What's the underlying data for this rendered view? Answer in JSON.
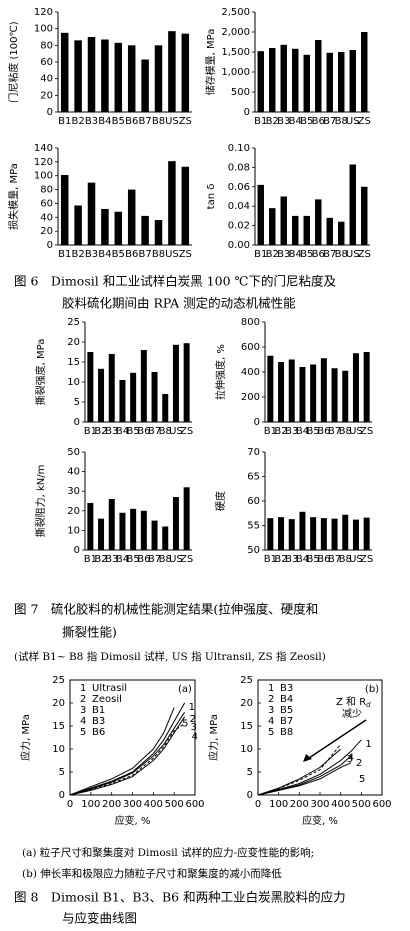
{
  "chart_data": [
    {
      "type": "bar",
      "ylabel": "门尼粘度 (100℃)",
      "categories": [
        "B1",
        "B2",
        "B3",
        "B4",
        "B5",
        "B6",
        "B7",
        "B8",
        "US",
        "ZS"
      ],
      "values": [
        95,
        86,
        90,
        87,
        83,
        80,
        63,
        80,
        97,
        94
      ],
      "color": "#000000",
      "ylim": [
        0,
        120
      ],
      "yticks": [
        0,
        20,
        40,
        60,
        80,
        100,
        120
      ]
    },
    {
      "type": "bar",
      "ylabel": "储存模量, MPa",
      "categories": [
        "B1",
        "B2",
        "B3",
        "B4",
        "B5",
        "B6",
        "B7",
        "B8",
        "US",
        "ZS"
      ],
      "values": [
        1520,
        1600,
        1680,
        1580,
        1430,
        1800,
        1480,
        1500,
        1550,
        2000
      ],
      "color": "#000000",
      "ylim": [
        0,
        2500
      ],
      "yticks": [
        0,
        500,
        {
          "value": 1000,
          "label": "1,000"
        },
        {
          "value": 1500,
          "label": "1,500"
        },
        {
          "value": 2000,
          "label": "2,000"
        },
        {
          "value": 2500,
          "label": "2,500"
        }
      ]
    },
    {
      "type": "bar",
      "ylabel": "损失模量, MPa",
      "categories": [
        "B1",
        "B2",
        "B3",
        "B4",
        "B5",
        "B6",
        "B7",
        "B8",
        "US",
        "ZS"
      ],
      "values": [
        101,
        57,
        90,
        52,
        48,
        80,
        42,
        36,
        121,
        113
      ],
      "color": "#000000",
      "ylim": [
        0,
        140
      ],
      "yticks": [
        0,
        20,
        40,
        60,
        80,
        100,
        120,
        140
      ]
    },
    {
      "type": "bar",
      "ylabel": "tan δ",
      "categories": [
        "B1",
        "B2",
        "B3",
        "B4",
        "B5",
        "B6",
        "B7",
        "B8",
        "US",
        "ZS"
      ],
      "values": [
        0.062,
        0.038,
        0.05,
        0.03,
        0.03,
        0.047,
        0.028,
        0.024,
        0.083,
        0.06
      ],
      "color": "#000000",
      "ylim": [
        0,
        0.1
      ],
      "yticks": [
        {
          "value": 0,
          "label": "0.00"
        },
        0.02,
        0.04,
        0.06,
        0.08,
        {
          "value": 0.1,
          "label": "0.10"
        }
      ]
    },
    {
      "type": "bar",
      "ylabel": "撕裂强度, MPa",
      "categories": [
        "B1",
        "B2",
        "B3",
        "B4",
        "B5",
        "B6",
        "B7",
        "B8",
        "US",
        "ZS"
      ],
      "values": [
        17.5,
        13.3,
        17,
        10.5,
        12.3,
        18,
        12.5,
        7,
        19.3,
        19.7
      ],
      "color": "#000000",
      "ylim": [
        0,
        25
      ],
      "yticks": [
        0,
        5,
        10,
        15,
        20,
        25
      ]
    },
    {
      "type": "bar",
      "ylabel": "拉伸强度, %",
      "categories": [
        "B1",
        "B2",
        "B3",
        "B4",
        "B5",
        "B6",
        "B7",
        "B8",
        "US",
        "ZS"
      ],
      "values": [
        530,
        480,
        500,
        440,
        460,
        510,
        430,
        410,
        550,
        560
      ],
      "color": "#000000",
      "ylim": [
        0,
        800
      ],
      "yticks": [
        0,
        200,
        400,
        600,
        800
      ]
    },
    {
      "type": "bar",
      "ylabel": "撕裂阻力, kN/m",
      "categories": [
        "B1",
        "B2",
        "B3",
        "B4",
        "B5",
        "B6",
        "B7",
        "B8",
        "US",
        "ZS"
      ],
      "values": [
        24,
        16,
        26,
        19,
        21,
        20,
        15,
        12,
        27,
        32
      ],
      "color": "#000000",
      "ylim": [
        0,
        50
      ],
      "yticks": [
        0,
        10,
        20,
        30,
        40,
        50
      ]
    },
    {
      "type": "bar",
      "ylabel": "硬度",
      "categories": [
        "B1",
        "B2",
        "B3",
        "B4",
        "B5",
        "B6",
        "B7",
        "B8",
        "US",
        "ZS"
      ],
      "values": [
        56.5,
        56.7,
        56.3,
        57.8,
        56.7,
        56.5,
        56.4,
        57.2,
        56.2,
        56.6
      ],
      "color": "#000000",
      "ylim": [
        50,
        70
      ],
      "yticks": [
        50,
        55,
        60,
        65,
        70
      ]
    },
    {
      "type": "line",
      "panel_label": "(a)",
      "xlabel": "应变, %",
      "ylabel": "应力, MPa",
      "x": [
        0,
        100,
        200,
        300,
        400,
        450,
        500,
        550
      ],
      "xlim": [
        0,
        600
      ],
      "xticks": [
        0,
        100,
        200,
        300,
        400,
        500,
        600
      ],
      "ylim": [
        0,
        25
      ],
      "yticks": [
        0,
        5,
        10,
        15,
        20,
        25
      ],
      "series": [
        {
          "label": "1",
          "name": "Ultrasil",
          "color": "#000000",
          "values": [
            0,
            1.5,
            3,
            5,
            9,
            12,
            16,
            20
          ]
        },
        {
          "label": "2",
          "name": "Zeosil",
          "color": "#000000",
          "values": [
            0,
            1.3,
            2.8,
            4.8,
            8.5,
            11,
            14.5,
            18
          ]
        },
        {
          "label": "3",
          "name": "B1",
          "color": "#000000",
          "values": [
            0,
            1,
            2.3,
            4,
            7.5,
            10,
            13.5,
            17
          ]
        },
        {
          "label": "4",
          "name": "B3",
          "color": "#000000",
          "values": [
            0,
            1.2,
            2.5,
            4.3,
            8,
            10.5,
            14,
            15.5
          ]
        },
        {
          "label": "5",
          "name": "B6",
          "color": "#000000",
          "values": [
            0,
            1.8,
            3.5,
            5.8,
            10,
            13.5,
            19,
            null
          ]
        }
      ]
    },
    {
      "type": "line",
      "panel_label": "(b)",
      "xlabel": "应变, %",
      "ylabel": "应力, MPa",
      "x": [
        0,
        100,
        200,
        300,
        400,
        450,
        500,
        550
      ],
      "xlim": [
        0,
        600
      ],
      "xticks": [
        0,
        100,
        200,
        300,
        400,
        500,
        600
      ],
      "ylim": [
        0,
        25
      ],
      "yticks": [
        0,
        5,
        10,
        15,
        20,
        25
      ],
      "annotation": {
        "text": "Z 和 R",
        "sub": "d",
        "text2": "减少"
      },
      "series": [
        {
          "label": "1",
          "name": "B3",
          "color": "#000000",
          "values": [
            0,
            1.2,
            2.5,
            4.5,
            7.5,
            9.5,
            12,
            null
          ]
        },
        {
          "label": "2",
          "name": "B4",
          "color": "#000000",
          "values": [
            0,
            1,
            2.2,
            4,
            6.5,
            8.5,
            null,
            null
          ]
        },
        {
          "label": "3",
          "name": "B5",
          "color": "#000000",
          "values": [
            0,
            1.5,
            3.5,
            6,
            10,
            null,
            null,
            null
          ]
        },
        {
          "label": "4",
          "name": "B7",
          "color": "#000000",
          "values": [
            0,
            1.4,
            3.2,
            5.5,
            11,
            null,
            null,
            null
          ]
        },
        {
          "label": "5",
          "name": "B8",
          "color": "#000000",
          "values": [
            0,
            1,
            2,
            3.5,
            6,
            7,
            null,
            null
          ]
        }
      ]
    }
  ],
  "captions": {
    "fig6": [
      "图 6　Dimosil 和工业试样白炭黑 100 ℃下的门尼粘度及",
      "胶料硫化期间由 RPA 测定的动态机械性能"
    ],
    "fig7": [
      "图 7　硫化胶料的机械性能测定结果(拉伸强度、硬度和",
      "撕裂性能)"
    ],
    "fig7_note": "(试样 B1~ B8 指 Dimosil 试样, US 指 Ultransil, ZS 指 Zeosil)",
    "fig8_notes": [
      "(a) 粒子尺寸和聚集度对 Dimosil 试样的应力-应变性能的影响;",
      "(b) 伸长率和极限应力随粒子尺寸和聚集度的减小而降低"
    ],
    "fig8": [
      "图 8　Dimosil B1、B3、B6 和两种工业白炭黑胶料的应力",
      "与应变曲线图"
    ]
  }
}
